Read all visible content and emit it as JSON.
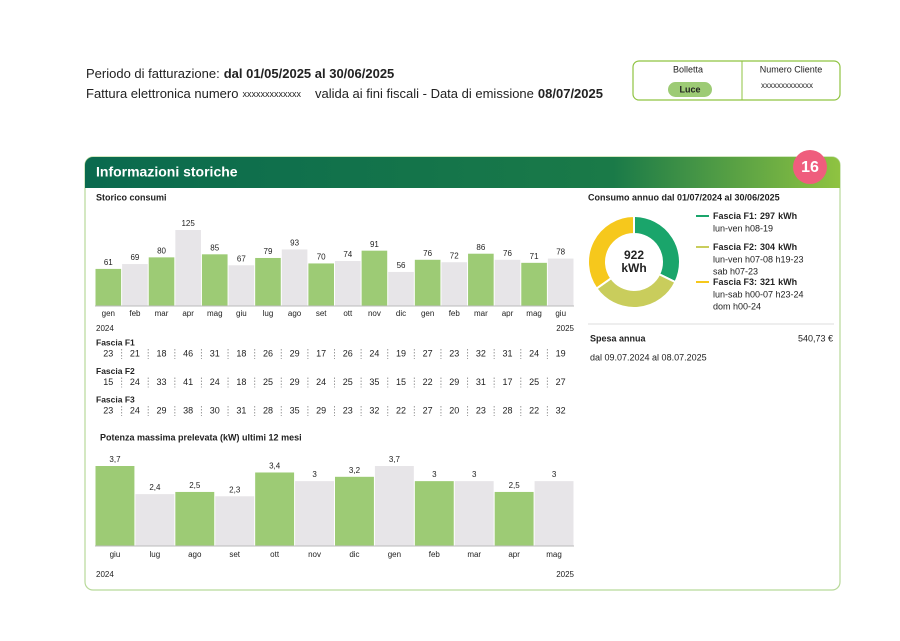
{
  "header": {
    "period_label": "Periodo di fatturazione:",
    "period": "dal 01/05/2025 al 30/06/2025",
    "invoice_label": "Fattura elettronica numero",
    "invoice_number": "xxxxxxxxxxxxx",
    "validity": "valida ai fini fiscali - Data di emissione",
    "issue_date": "08/07/2025"
  },
  "info_box": {
    "bill_label": "Bolletta",
    "bill_type": "Luce",
    "client_label": "Numero Cliente",
    "client_number": "xxxxxxxxxxxxx"
  },
  "section": {
    "title": "Informazioni storiche",
    "page": "16"
  },
  "chart_data": [
    {
      "type": "bar",
      "title": "Storico consumi",
      "categories": [
        "gen",
        "feb",
        "mar",
        "apr",
        "mag",
        "giu",
        "lug",
        "ago",
        "set",
        "ott",
        "nov",
        "dic",
        "gen",
        "feb",
        "mar",
        "apr",
        "mag",
        "giu"
      ],
      "values": [
        61,
        69,
        80,
        125,
        85,
        67,
        79,
        93,
        70,
        74,
        91,
        56,
        76,
        72,
        86,
        76,
        71,
        78
      ],
      "colors": [
        "#9dcb75",
        "#e7e5e8",
        "#9dcb75",
        "#e7e5e8",
        "#9dcb75",
        "#e7e5e8",
        "#9dcb75",
        "#e7e5e8",
        "#9dcb75",
        "#e7e5e8",
        "#9dcb75",
        "#e7e5e8",
        "#9dcb75",
        "#e7e5e8",
        "#9dcb75",
        "#e7e5e8",
        "#9dcb75",
        "#e7e5e8"
      ],
      "years": [
        "2024",
        "2025"
      ]
    },
    {
      "type": "bar",
      "title": "Potenza massima prelevata (kW) ultimi 12 mesi",
      "categories": [
        "giu",
        "lug",
        "ago",
        "set",
        "ott",
        "nov",
        "dic",
        "gen",
        "feb",
        "mar",
        "apr",
        "mag"
      ],
      "values": [
        3.7,
        2.4,
        2.5,
        2.3,
        3.4,
        3,
        3.2,
        3.7,
        3,
        3,
        2.5,
        3
      ],
      "value_labels": [
        "3,7",
        "2,4",
        "2,5",
        "2,3",
        "3,4",
        "3",
        "3,2",
        "3,7",
        "3",
        "3",
        "2,5",
        "3"
      ],
      "colors": [
        "#9dcb75",
        "#e7e5e8",
        "#9dcb75",
        "#e7e5e8",
        "#9dcb75",
        "#e7e5e8",
        "#9dcb75",
        "#e7e5e8",
        "#9dcb75",
        "#e7e5e8",
        "#9dcb75",
        "#e7e5e8"
      ],
      "years": [
        "2024",
        "2025"
      ]
    },
    {
      "type": "pie",
      "title": "Consumo annuo dal 01/07/2024 al 30/06/2025",
      "categories": [
        "Fascia F1:",
        "Fascia F2:",
        "Fascia F3:"
      ],
      "values": [
        297,
        304,
        321
      ],
      "colors": [
        "#1aa56b",
        "#c9cd5c",
        "#f6c81c"
      ],
      "unit": "kWh",
      "total": 922,
      "descriptions": [
        [
          "lun-ven h08-19"
        ],
        [
          "lun-ven h07-08 h19-23",
          "sab h07-23"
        ],
        [
          "lun-sab h00-07 h23-24",
          "dom h00-24"
        ]
      ]
    }
  ],
  "table": {
    "rows": [
      {
        "label": "Fascia F1",
        "values": [
          23,
          21,
          18,
          46,
          31,
          18,
          26,
          29,
          17,
          26,
          24,
          19,
          27,
          23,
          32,
          31,
          24,
          19
        ]
      },
      {
        "label": "Fascia F2",
        "values": [
          15,
          24,
          33,
          41,
          24,
          18,
          25,
          29,
          24,
          25,
          35,
          15,
          22,
          29,
          31,
          17,
          25,
          27
        ]
      },
      {
        "label": "Fascia F3",
        "values": [
          23,
          24,
          29,
          38,
          30,
          31,
          28,
          35,
          29,
          23,
          32,
          22,
          27,
          20,
          23,
          28,
          22,
          32
        ]
      }
    ]
  },
  "spending": {
    "label": "Spesa annua",
    "amount": "540,73 €",
    "period": "dal 09.07.2024 al 08.07.2025"
  }
}
